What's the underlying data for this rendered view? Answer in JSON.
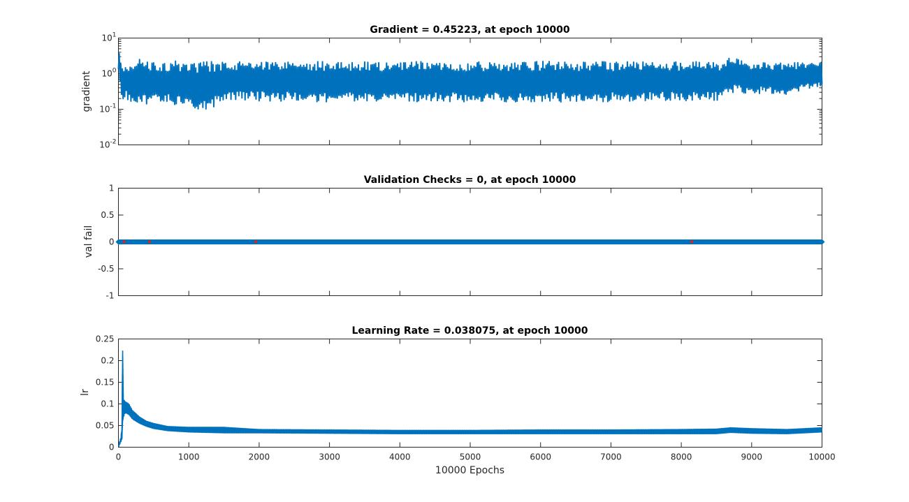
{
  "chart_data": [
    {
      "type": "line",
      "title": "Gradient = 0.45223, at epoch 10000",
      "xlabel": "",
      "ylabel": "gradient",
      "yscale": "log",
      "xlim": [
        0,
        10000
      ],
      "ylim": [
        0.01,
        10
      ],
      "ytick_labels": [
        {
          "base": "10",
          "exp": "-2",
          "value": 0.01
        },
        {
          "base": "10",
          "exp": "-1",
          "value": 0.1
        },
        {
          "base": "10",
          "exp": "0",
          "value": 1
        },
        {
          "base": "10",
          "exp": "1",
          "value": 10
        }
      ],
      "color": "#0072bd",
      "series": [
        {
          "x": [
            0,
            30,
            60,
            100,
            150,
            200,
            250,
            300,
            400,
            500,
            600,
            700,
            800,
            900,
            1000,
            1100,
            1200,
            1300,
            1400,
            1500,
            1550,
            1600,
            2000,
            3000,
            4000,
            5000,
            6000,
            7000,
            8000,
            8600,
            8650,
            9000,
            9500,
            10000
          ],
          "y_high": [
            4.5,
            2.6,
            1.8,
            2.0,
            2.3,
            2.0,
            2.1,
            2.5,
            2.2,
            2.3,
            2.1,
            2.2,
            2.3,
            2.2,
            2.2,
            2.1,
            2.2,
            2.2,
            2.1,
            2.1,
            2.3,
            2.3,
            2.3,
            2.2,
            2.2,
            2.2,
            2.2,
            2.2,
            2.2,
            2.2,
            2.9,
            2.1,
            2.0,
            2.1
          ],
          "y_low": [
            0.9,
            0.2,
            0.15,
            0.2,
            0.15,
            0.17,
            0.13,
            0.18,
            0.14,
            0.16,
            0.13,
            0.15,
            0.12,
            0.14,
            0.15,
            0.1,
            0.09,
            0.11,
            0.12,
            0.14,
            0.2,
            0.18,
            0.17,
            0.16,
            0.16,
            0.16,
            0.16,
            0.16,
            0.17,
            0.18,
            0.3,
            0.28,
            0.25,
            0.45
          ]
        }
      ]
    },
    {
      "type": "scatter",
      "title": "Validation Checks = 0, at epoch 10000",
      "xlabel": "",
      "ylabel": "val fail",
      "xlim": [
        0,
        10000
      ],
      "ylim": [
        -1,
        1
      ],
      "yticks": [
        -1,
        -0.5,
        0,
        0.5,
        1
      ],
      "ytick_labels": [
        "-1",
        "-0.5",
        "0",
        "0.5",
        "1"
      ],
      "series": [
        {
          "name": "",
          "x": [
            0,
            10000
          ],
          "y": [
            0,
            0
          ],
          "color": "#0072bd",
          "note": ""
        },
        {
          "name": "",
          "x": [
            80,
            440,
            1950,
            8150
          ],
          "y": [
            0,
            0,
            0,
            0
          ],
          "color": "#d62728"
        }
      ]
    },
    {
      "type": "line",
      "title": "Learning Rate = 0.038075, at epoch 10000",
      "xlabel": "10000 Epochs",
      "ylabel": "lr",
      "xlim": [
        0,
        10000
      ],
      "ylim": [
        0,
        0.25
      ],
      "xticks": [
        0,
        1000,
        2000,
        3000,
        4000,
        5000,
        6000,
        7000,
        8000,
        9000,
        10000
      ],
      "xtick_labels": [
        "0",
        "1000",
        "2000",
        "3000",
        "4000",
        "5000",
        "6000",
        "7000",
        "8000",
        "9000",
        "10000"
      ],
      "yticks": [
        0,
        0.05,
        0.1,
        0.15,
        0.2,
        0.25
      ],
      "ytick_labels": [
        "0",
        "0.05",
        "0.1",
        "0.15",
        "0.2",
        "0.25"
      ],
      "color": "#0072bd",
      "series": [
        {
          "x": [
            0,
            30,
            50,
            60,
            70,
            100,
            150,
            200,
            300,
            400,
            500,
            700,
            1000,
            1500,
            2000,
            3000,
            4000,
            5000,
            6000,
            7000,
            8000,
            8500,
            8700,
            9000,
            9500,
            10000
          ],
          "y_high": [
            0.005,
            0.02,
            0.04,
            0.228,
            0.11,
            0.105,
            0.1,
            0.085,
            0.07,
            0.06,
            0.055,
            0.048,
            0.046,
            0.046,
            0.041,
            0.04,
            0.039,
            0.039,
            0.04,
            0.04,
            0.041,
            0.042,
            0.045,
            0.043,
            0.041,
            0.045
          ],
          "y_low": [
            0.0,
            0.01,
            0.02,
            0.06,
            0.07,
            0.08,
            0.075,
            0.065,
            0.055,
            0.048,
            0.043,
            0.038,
            0.035,
            0.033,
            0.033,
            0.032,
            0.031,
            0.031,
            0.031,
            0.031,
            0.031,
            0.031,
            0.034,
            0.032,
            0.031,
            0.035
          ]
        }
      ]
    }
  ]
}
